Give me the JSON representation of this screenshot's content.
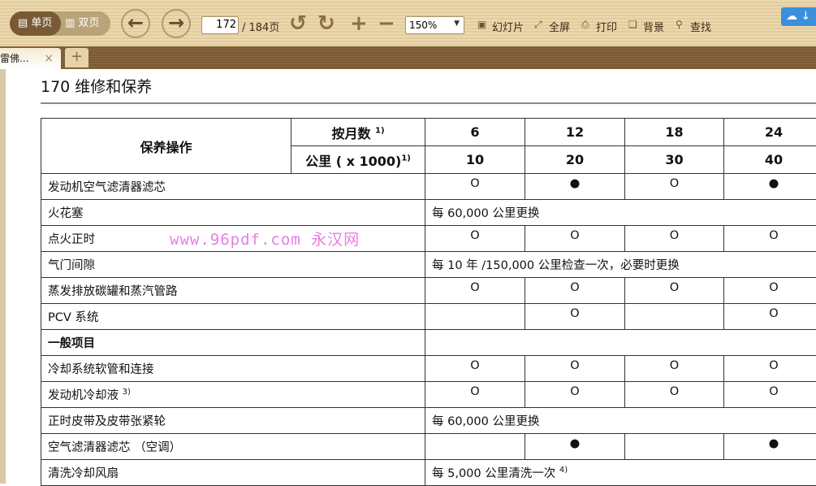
{
  "toolbar": {
    "single_page": "单页",
    "double_page": "双页",
    "current_page": "172",
    "total_pages": "/ 184页",
    "zoom": "150%",
    "slideshow": "幻灯片",
    "fullscreen": "全屏",
    "print": "打印",
    "background": "背景",
    "find": "查找"
  },
  "tabs": {
    "doc_tab": "雷佛...",
    "close": "×",
    "new_tab": "+"
  },
  "page": {
    "title": "170 维修和保养",
    "watermark": "www.96pdf.com 永汉网"
  },
  "table": {
    "op_header": "保养操作",
    "months_label": "按月数",
    "km_label": "公里 ( x 1000)",
    "fn": "1)",
    "months": [
      "6",
      "12",
      "18",
      "24"
    ],
    "km": [
      "10",
      "20",
      "30",
      "40"
    ],
    "rows": [
      {
        "label": "发动机空气滤清器滤芯",
        "cells": [
          "O",
          "●",
          "O",
          "●"
        ]
      },
      {
        "label": "火花塞",
        "span": "每 60,000 公里更换"
      },
      {
        "label": "点火正时",
        "cells": [
          "O",
          "O",
          "O",
          "O"
        ]
      },
      {
        "label": "气门间隙",
        "span": "每 10 年 /150,000 公里检查一次，必要时更换"
      },
      {
        "label": "蒸发排放碳罐和蒸汽管路",
        "cells": [
          "O",
          "O",
          "O",
          "O"
        ]
      },
      {
        "label": "PCV 系统",
        "cells": [
          "",
          "O",
          "",
          "O"
        ]
      },
      {
        "label": "一般项目",
        "section": true
      },
      {
        "label": "冷却系统软管和连接",
        "cells": [
          "O",
          "O",
          "O",
          "O"
        ]
      },
      {
        "label": "发动机冷却液",
        "sup": "3)",
        "cells": [
          "O",
          "O",
          "O",
          "O"
        ]
      },
      {
        "label": "正时皮带及皮带张紧轮",
        "span": "每 60,000 公里更换"
      },
      {
        "label": "空气滤清器滤芯 （空调）",
        "cells": [
          "",
          "●",
          "",
          "●"
        ]
      },
      {
        "label": "清洗冷却风扇",
        "span": "每 5,000 公里清洗一次",
        "spansup": "4)"
      }
    ]
  }
}
